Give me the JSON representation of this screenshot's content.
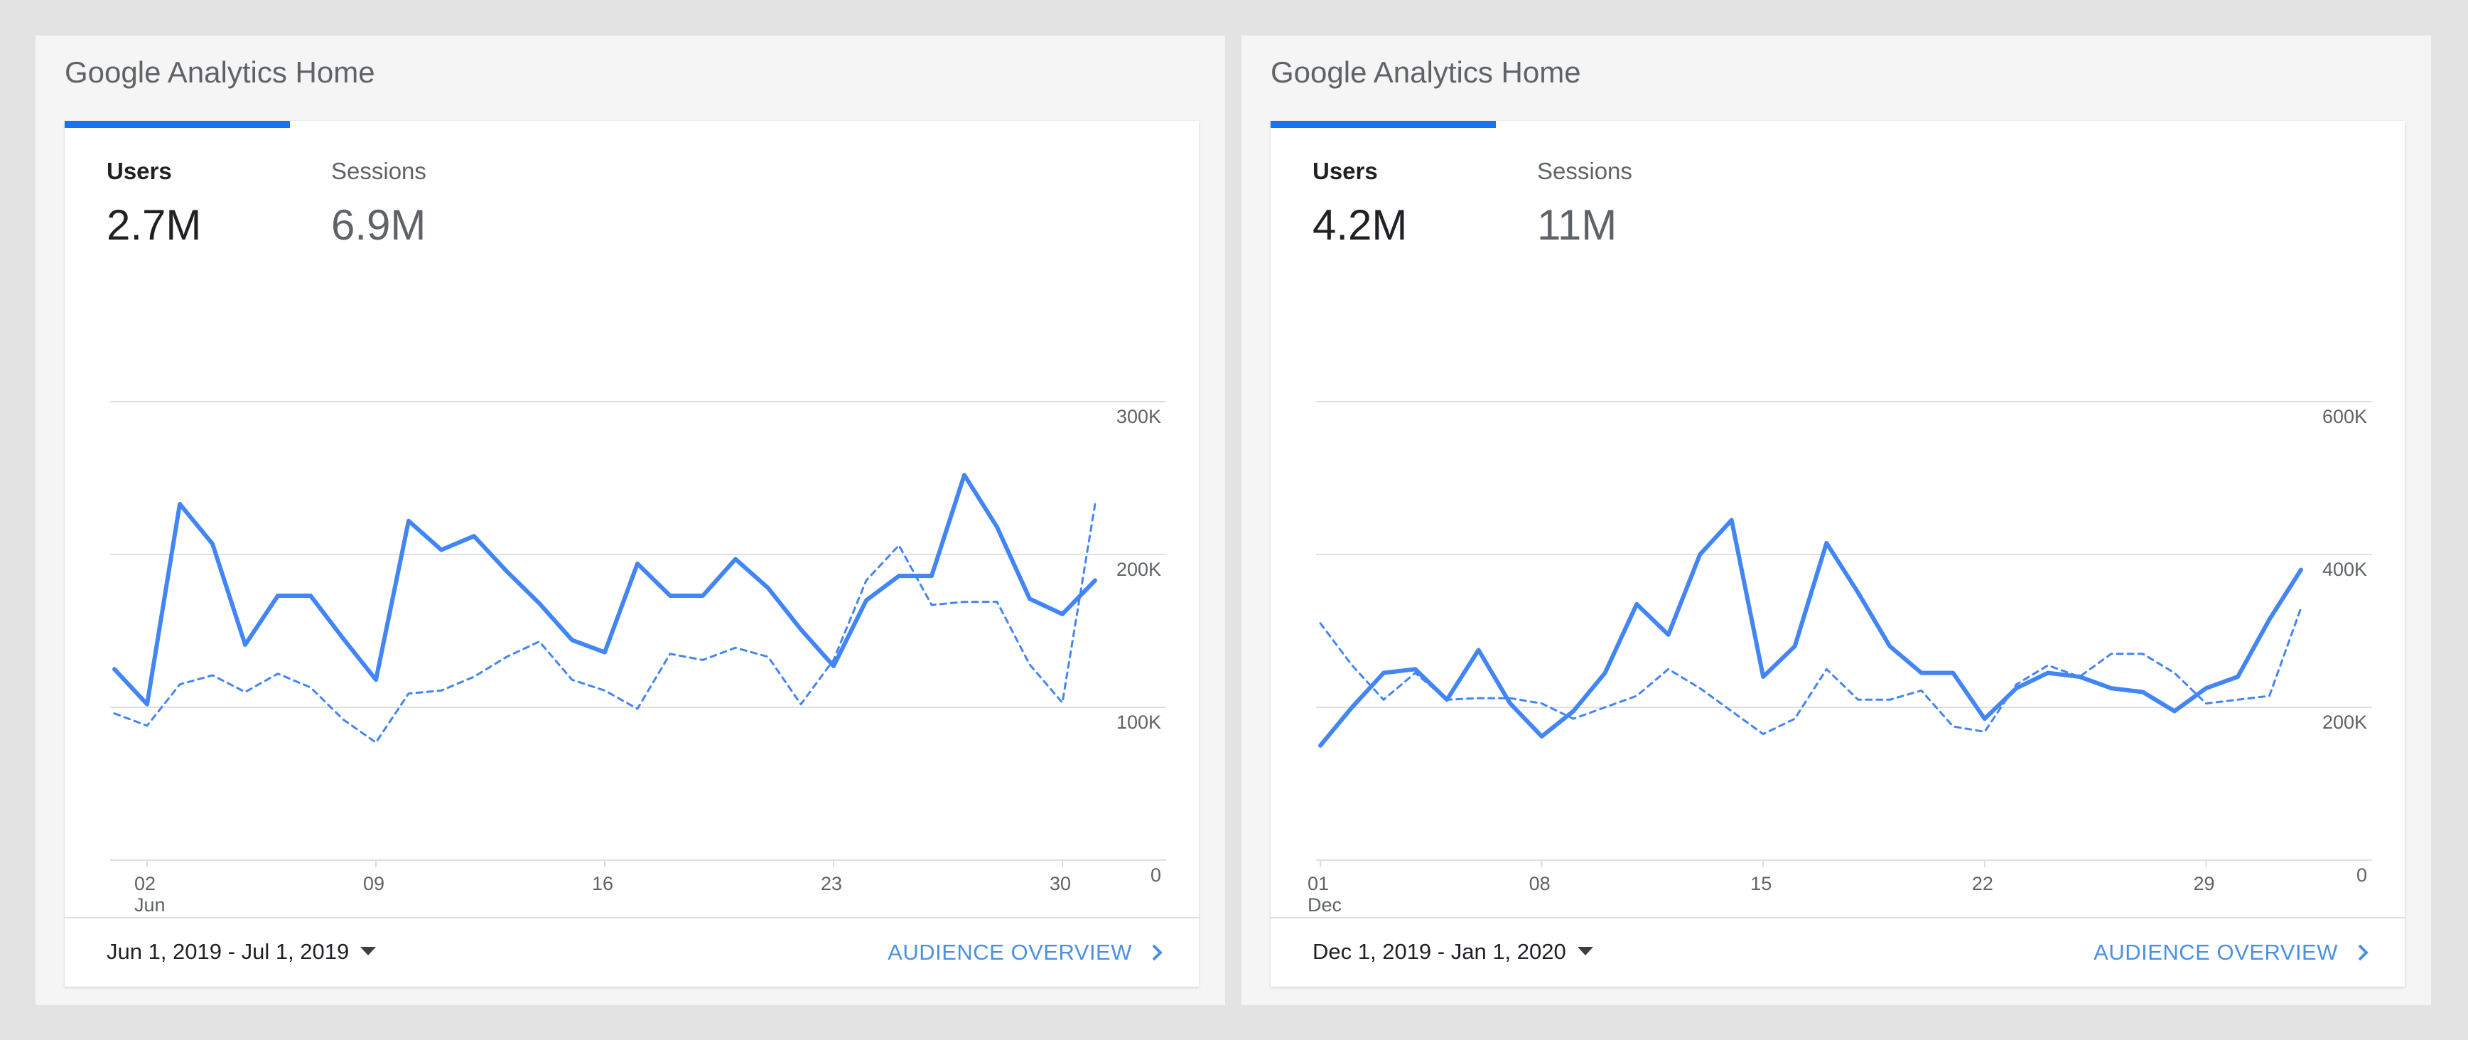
{
  "panels": [
    {
      "title": "Google Analytics Home",
      "metrics": [
        {
          "label": "Users",
          "value": "2.7M"
        },
        {
          "label": "Sessions",
          "value": "6.9M"
        }
      ],
      "date_range": "Jun 1, 2019 - Jul 1, 2019",
      "audience_link": "AUDIENCE OVERVIEW"
    },
    {
      "title": "Google Analytics Home",
      "metrics": [
        {
          "label": "Users",
          "value": "4.2M"
        },
        {
          "label": "Sessions",
          "value": "11M"
        }
      ],
      "date_range": "Dec 1, 2019 - Jan 1, 2020",
      "audience_link": "AUDIENCE OVERVIEW"
    }
  ],
  "colors": {
    "accent": "#1a73e8",
    "current_line": "#4285f4",
    "comparison_line": "#4285f4",
    "grid": "#e0e0e0",
    "link": "#4a90e2"
  },
  "icons": {
    "date_dropdown": "caret-down-icon",
    "audience_link": "chevron-right-icon"
  },
  "chart_data": [
    {
      "type": "line",
      "ylim": [
        0,
        300000
      ],
      "yticks": [
        0,
        100000,
        200000,
        300000
      ],
      "ytick_labels": [
        "0",
        "100K",
        "200K",
        "300K"
      ],
      "x_axis": {
        "first": 1,
        "last": 31
      },
      "xticks": [
        {
          "x": 2,
          "label": "02",
          "sublabel": "Jun"
        },
        {
          "x": 9,
          "label": "09"
        },
        {
          "x": 16,
          "label": "16"
        },
        {
          "x": 23,
          "label": "23"
        },
        {
          "x": 30,
          "label": "30"
        }
      ],
      "series": [
        {
          "style": "solid",
          "values": [
            125000,
            102000,
            233000,
            207000,
            141000,
            173000,
            173000,
            145000,
            118000,
            222000,
            203000,
            212000,
            189000,
            168000,
            144000,
            136000,
            194000,
            173000,
            173000,
            197000,
            178000,
            151000,
            127000,
            170000,
            186000,
            186000,
            252000,
            218000,
            171000,
            161000,
            183000
          ]
        },
        {
          "style": "dashed",
          "values": [
            96000,
            88000,
            115000,
            121000,
            110000,
            122000,
            113000,
            92000,
            77000,
            109000,
            111000,
            120000,
            133000,
            143000,
            118000,
            111000,
            99000,
            135000,
            131000,
            139000,
            133000,
            102000,
            131000,
            183000,
            206000,
            167000,
            169000,
            169000,
            128000,
            103000,
            233000
          ]
        }
      ]
    },
    {
      "type": "line",
      "ylim": [
        0,
        600000
      ],
      "yticks": [
        0,
        200000,
        400000,
        600000
      ],
      "ytick_labels": [
        "0",
        "200K",
        "400K",
        "600K"
      ],
      "x_axis": {
        "first": 1,
        "last": 32
      },
      "xticks": [
        {
          "x": 1,
          "label": "01",
          "sublabel": "Dec"
        },
        {
          "x": 8,
          "label": "08"
        },
        {
          "x": 15,
          "label": "15"
        },
        {
          "x": 22,
          "label": "22"
        },
        {
          "x": 29,
          "label": "29"
        }
      ],
      "series": [
        {
          "style": "solid",
          "values": [
            150000,
            200000,
            245000,
            250000,
            210000,
            275000,
            205000,
            162000,
            195000,
            245000,
            335000,
            295000,
            400000,
            445000,
            240000,
            280000,
            415000,
            350000,
            280000,
            245000,
            245000,
            185000,
            225000,
            245000,
            240000,
            225000,
            220000,
            195000,
            225000,
            240000,
            315000,
            380000
          ]
        },
        {
          "style": "dashed",
          "values": [
            310000,
            255000,
            210000,
            245000,
            210000,
            212000,
            212000,
            205000,
            185000,
            200000,
            215000,
            250000,
            225000,
            195000,
            165000,
            185000,
            250000,
            210000,
            210000,
            222000,
            175000,
            168000,
            230000,
            255000,
            240000,
            270000,
            270000,
            245000,
            205000,
            210000,
            215000,
            330000
          ]
        }
      ]
    }
  ]
}
